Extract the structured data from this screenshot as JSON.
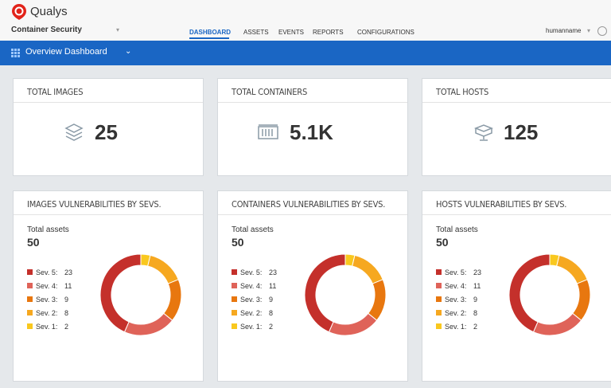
{
  "header": {
    "logo": "Qualys",
    "app": "Container Security",
    "nav": [
      "DASHBOARD",
      "ASSETS",
      "EVENTS",
      "REPORTS",
      "CONFIGURATIONS"
    ],
    "user": "humanname"
  },
  "toolbar": {
    "title": "Overview Dashboard"
  },
  "stats": [
    {
      "label": "TOTAL IMAGES",
      "value": 25
    },
    {
      "label": "TOTAL CONTAINERS",
      "value": "5.1K"
    },
    {
      "label": "TOTAL HOSTS",
      "value": 125
    }
  ],
  "panels": [
    {
      "title": "IMAGES VULNERABILITIES BY SEVS.",
      "total_label": "Total assets",
      "total": 50,
      "legend": [
        {
          "label": "Sev. 5:",
          "value": 23,
          "color": "#c4302b"
        },
        {
          "label": "Sev. 4:",
          "value": 11,
          "color": "#df6359"
        },
        {
          "label": "Sev. 3:",
          "value": 9,
          "color": "#e8770f"
        },
        {
          "label": "Sev. 2:",
          "value": 8,
          "color": "#f6a820"
        },
        {
          "label": "Sev. 1:",
          "value": 2,
          "color": "#f9c81e"
        }
      ]
    },
    {
      "title": "CONTAINERS VULNERABILITIES BY SEVS.",
      "total_label": "Total assets",
      "total": 50,
      "legend": [
        {
          "label": "Sev. 5:",
          "value": 23,
          "color": "#c4302b"
        },
        {
          "label": "Sev. 4:",
          "value": 11,
          "color": "#df6359"
        },
        {
          "label": "Sev. 3:",
          "value": 9,
          "color": "#e8770f"
        },
        {
          "label": "Sev. 2:",
          "value": 8,
          "color": "#f6a820"
        },
        {
          "label": "Sev. 1:",
          "value": 2,
          "color": "#f9c81e"
        }
      ]
    },
    {
      "title": "HOSTS VULNERABILITIES BY SEVS.",
      "total_label": "Total assets",
      "total": 50,
      "legend": [
        {
          "label": "Sev. 5:",
          "value": 23,
          "color": "#c4302b"
        },
        {
          "label": "Sev. 4:",
          "value": 11,
          "color": "#df6359"
        },
        {
          "label": "Sev. 3:",
          "value": 9,
          "color": "#e8770f"
        },
        {
          "label": "Sev. 2:",
          "value": 8,
          "color": "#f6a820"
        },
        {
          "label": "Sev. 1:",
          "value": 2,
          "color": "#f9c81e"
        }
      ]
    }
  ]
}
